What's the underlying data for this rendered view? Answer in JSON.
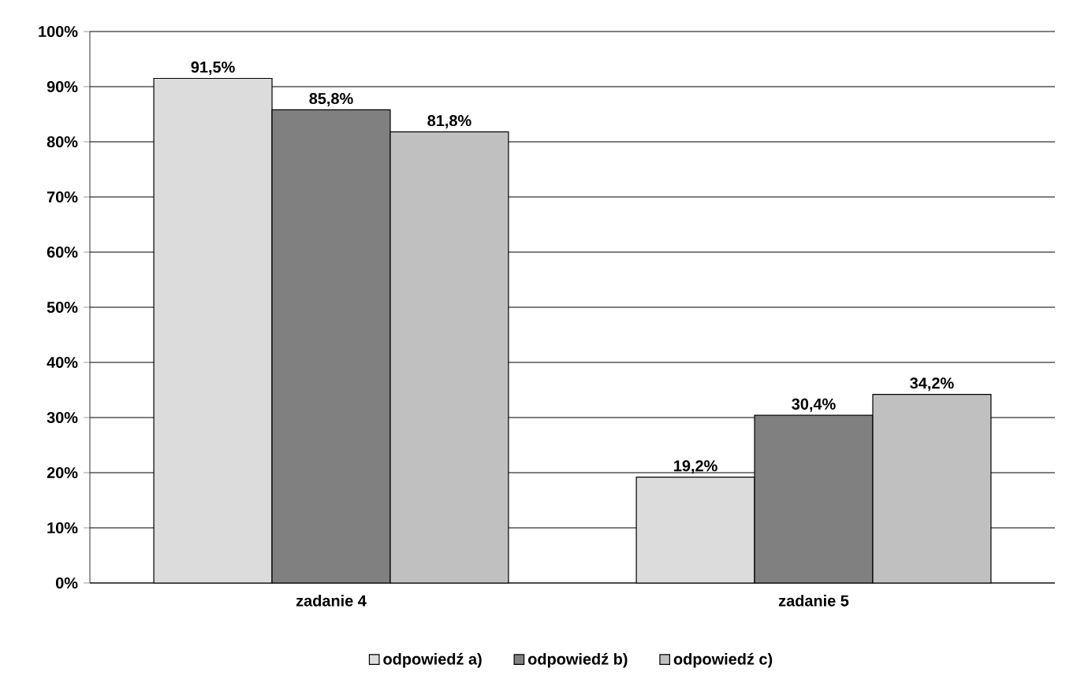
{
  "chart_data": {
    "type": "bar",
    "categories": [
      "zadanie 4",
      "zadanie 5"
    ],
    "series": [
      {
        "name": "odpowiedź a)",
        "color": "#dcdcdc",
        "values": [
          91.5,
          19.2
        ],
        "value_labels": [
          "91,5%",
          "19,2%"
        ]
      },
      {
        "name": "odpowiedź b)",
        "color": "#808080",
        "values": [
          85.8,
          30.4
        ],
        "value_labels": [
          "85,8%",
          "30,4%"
        ]
      },
      {
        "name": "odpowiedź c)",
        "color": "#c0c0c0",
        "values": [
          81.8,
          34.2
        ],
        "value_labels": [
          "81,8%",
          "34,2%"
        ]
      }
    ],
    "ylim": [
      0,
      100
    ],
    "yticks": [
      {
        "value": 0,
        "label": "0%"
      },
      {
        "value": 10,
        "label": "10%"
      },
      {
        "value": 20,
        "label": "20%"
      },
      {
        "value": 30,
        "label": "30%"
      },
      {
        "value": 40,
        "label": "40%"
      },
      {
        "value": 50,
        "label": "50%"
      },
      {
        "value": 60,
        "label": "60%"
      },
      {
        "value": 70,
        "label": "70%"
      },
      {
        "value": 80,
        "label": "80%"
      },
      {
        "value": 90,
        "label": "90%"
      },
      {
        "value": 100,
        "label": "100%"
      }
    ],
    "grid": "y",
    "legend": "bottom"
  }
}
